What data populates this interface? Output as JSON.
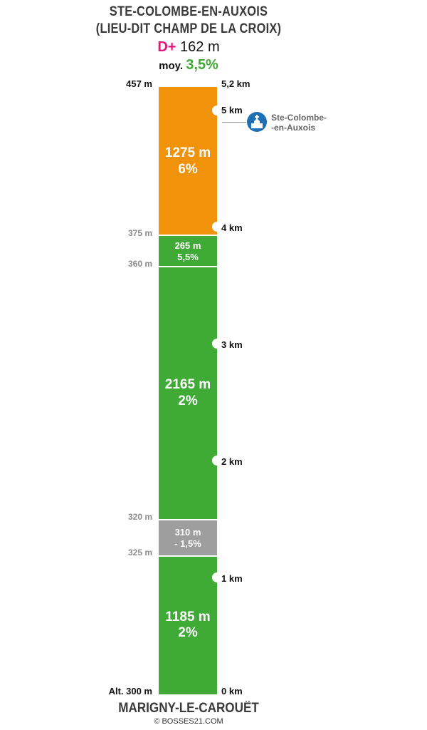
{
  "title": {
    "line1": "STE-COLOMBE-EN-AUXOIS",
    "line2": "(LIEU-DIT CHAMP DE LA CROIX)"
  },
  "summary": {
    "dplus_label": "D+",
    "dplus_value": "162 m",
    "avg_label": "moy.",
    "avg_value": "3,5%"
  },
  "altitudes": {
    "top": "457 m",
    "a375": "375 m",
    "a360": "360 m",
    "a320": "320 m",
    "a325": "325 m",
    "bottom": "Alt. 300 m"
  },
  "km_marks": {
    "total": "5,2 km",
    "k5": "5 km",
    "k4": "4 km",
    "k3": "3 km",
    "k2": "2 km",
    "k1": "1 km",
    "k0": "0 km"
  },
  "segments": [
    {
      "length": "1185 m",
      "grade": "2%",
      "color": "#3faa36"
    },
    {
      "length": "310 m",
      "grade": "- 1,5%",
      "color": "#9e9e9e"
    },
    {
      "length": "2165 m",
      "grade": "2%",
      "color": "#3faa36"
    },
    {
      "length": "265 m",
      "grade": "5,5%",
      "color": "#3faa36"
    },
    {
      "length": "1275 m",
      "grade": "6%",
      "color": "#f0920a"
    }
  ],
  "poi": {
    "line1": "Ste-Colombe-",
    "line2": "-en-Auxois",
    "icon": "church-icon",
    "color": "#1f6fb4"
  },
  "start": "MARIGNY-LE-CAROUËT",
  "credit": "© BOSSES21.COM"
}
